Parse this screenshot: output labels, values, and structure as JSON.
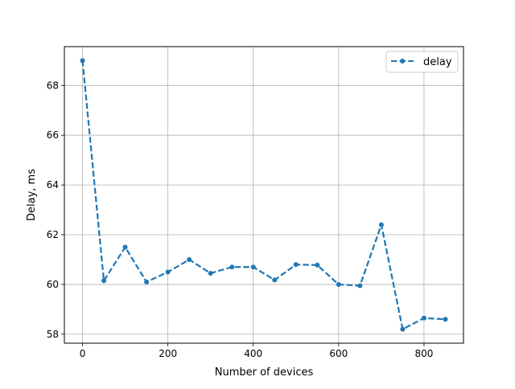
{
  "chart_data": {
    "type": "line",
    "title": "",
    "xlabel": "Number of devices",
    "ylabel": "Delay, ms",
    "xlim": [
      -42.5,
      892.5
    ],
    "ylim": [
      57.64,
      69.56
    ],
    "xticks": [
      0,
      200,
      400,
      600,
      800
    ],
    "yticks": [
      58,
      60,
      62,
      64,
      66,
      68
    ],
    "grid": true,
    "legend": "top-right",
    "series": [
      {
        "name": "delay",
        "color": "#1f77b4",
        "linestyle": "dashed",
        "marker": "circle",
        "x": [
          0,
          50,
          100,
          150,
          200,
          250,
          300,
          350,
          400,
          450,
          500,
          550,
          600,
          650,
          700,
          750,
          800,
          850
        ],
        "y": [
          69.0,
          60.15,
          61.5,
          60.1,
          60.5,
          61.0,
          60.45,
          60.7,
          60.7,
          60.18,
          60.8,
          60.78,
          60.0,
          59.95,
          62.4,
          58.2,
          58.65,
          58.6
        ]
      }
    ]
  }
}
